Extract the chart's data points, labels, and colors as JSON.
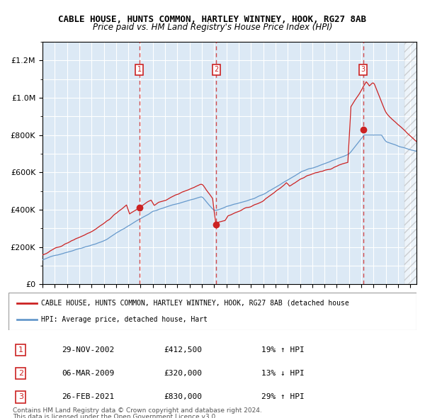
{
  "title": "CABLE HOUSE, HUNTS COMMON, HARTLEY WINTNEY, HOOK, RG27 8AB",
  "subtitle": "Price paid vs. HM Land Registry's House Price Index (HPI)",
  "legend_line1": "CABLE HOUSE, HUNTS COMMON, HARTLEY WINTNEY, HOOK, RG27 8AB (detached house",
  "legend_line2": "HPI: Average price, detached house, Hart",
  "footer1": "Contains HM Land Registry data © Crown copyright and database right 2024.",
  "footer2": "This data is licensed under the Open Government Licence v3.0.",
  "transactions": [
    {
      "num": 1,
      "date": "29-NOV-2002",
      "price": 412500,
      "pct": "19%",
      "dir": "↑"
    },
    {
      "num": 2,
      "date": "06-MAR-2009",
      "price": 320000,
      "pct": "13%",
      "dir": "↓"
    },
    {
      "num": 3,
      "date": "26-FEB-2021",
      "price": 830000,
      "pct": "29%",
      "dir": "↑"
    }
  ],
  "transaction_dates_decimal": [
    2002.91,
    2009.17,
    2021.15
  ],
  "transaction_prices": [
    412500,
    320000,
    830000
  ],
  "ylim": [
    0,
    1300000
  ],
  "xlim_start": 1995.0,
  "xlim_end": 2025.5,
  "background_color": "#dce9f5",
  "plot_bg_color": "#dce9f5",
  "hpi_color": "#6699cc",
  "price_color": "#cc2222",
  "vline_color": "#cc2222",
  "grid_color": "#ffffff"
}
